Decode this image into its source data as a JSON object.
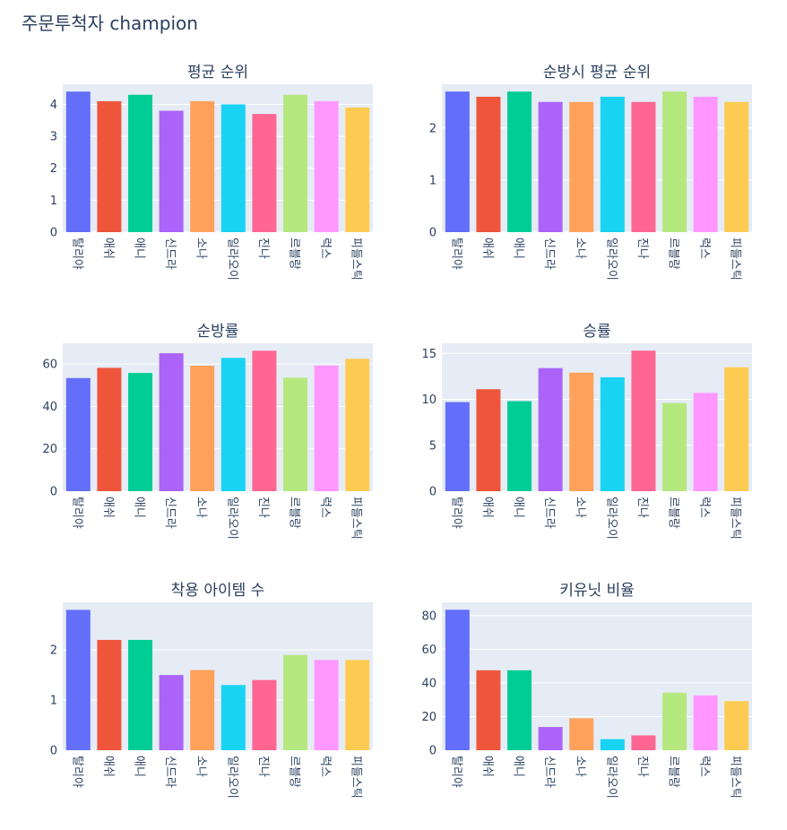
{
  "title": "주문투척자 champion",
  "categories": [
    "탈리야",
    "애쉬",
    "애니",
    "신드라",
    "소나",
    "일라오이",
    "진나",
    "르블랑",
    "럭스",
    "피들스틱"
  ],
  "colors": [
    "#636efa",
    "#ef553b",
    "#00cc96",
    "#ab63fa",
    "#ffa15a",
    "#19d3f3",
    "#ff6692",
    "#b6e880",
    "#ff97ff",
    "#fecb52"
  ],
  "chart_data": [
    {
      "type": "bar",
      "title": "평균 순위",
      "values": [
        4.4,
        4.1,
        4.3,
        3.8,
        4.1,
        4.0,
        3.7,
        4.3,
        4.1,
        3.9
      ],
      "ylim": [
        0,
        4.63
      ],
      "ticks": [
        0,
        1,
        2,
        3,
        4
      ]
    },
    {
      "type": "bar",
      "title": "순방시 평균 순위",
      "values": [
        2.7,
        2.6,
        2.7,
        2.5,
        2.5,
        2.6,
        2.5,
        2.7,
        2.6,
        2.5
      ],
      "ylim": [
        0,
        2.84
      ],
      "ticks": [
        0,
        1,
        2
      ]
    },
    {
      "type": "bar",
      "title": "순방률",
      "values": [
        53.4,
        58.2,
        55.8,
        65.1,
        59.2,
        62.9,
        66.3,
        53.6,
        59.3,
        62.5
      ],
      "ylim": [
        0,
        69.8
      ],
      "ticks": [
        0,
        20,
        40,
        60
      ]
    },
    {
      "type": "bar",
      "title": "승률",
      "values": [
        9.7,
        11.1,
        9.8,
        13.4,
        12.9,
        12.4,
        15.3,
        9.6,
        10.7,
        13.5
      ],
      "ylim": [
        0,
        16.1
      ],
      "ticks": [
        0,
        5,
        10,
        15
      ]
    },
    {
      "type": "bar",
      "title": "착용 아이템 수",
      "values": [
        2.8,
        2.2,
        2.2,
        1.5,
        1.6,
        1.3,
        1.4,
        1.9,
        1.8,
        1.8
      ],
      "ylim": [
        0,
        2.95
      ],
      "ticks": [
        0,
        1,
        2
      ]
    },
    {
      "type": "bar",
      "title": "키유닛 비율",
      "values": [
        83.5,
        47.5,
        47.5,
        13.8,
        19.0,
        6.6,
        8.8,
        34.2,
        32.6,
        29.2
      ],
      "ylim": [
        0,
        87.9
      ],
      "ticks": [
        0,
        20,
        40,
        60,
        80
      ]
    }
  ]
}
